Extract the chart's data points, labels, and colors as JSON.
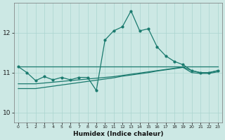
{
  "xlabel": "Humidex (Indice chaleur)",
  "bg_color": "#cce8e4",
  "line_color": "#1a7a6e",
  "grid_color": "#aad4cf",
  "xlim": [
    -0.5,
    23.5
  ],
  "ylim": [
    9.75,
    12.75
  ],
  "yticks": [
    10,
    11,
    12
  ],
  "xticks": [
    0,
    1,
    2,
    3,
    4,
    5,
    6,
    7,
    8,
    9,
    10,
    11,
    12,
    13,
    14,
    15,
    16,
    17,
    18,
    19,
    20,
    21,
    22,
    23
  ],
  "line_flat_x": [
    0,
    1,
    2,
    3,
    4,
    5,
    6,
    7,
    8,
    9,
    10,
    11,
    12,
    13,
    14,
    15,
    16,
    17,
    18,
    19,
    20,
    21,
    22,
    23
  ],
  "line_flat_y": [
    11.15,
    11.15,
    11.15,
    11.15,
    11.15,
    11.15,
    11.15,
    11.15,
    11.15,
    11.15,
    11.15,
    11.15,
    11.15,
    11.15,
    11.15,
    11.15,
    11.15,
    11.15,
    11.15,
    11.15,
    11.15,
    11.15,
    11.15,
    11.15
  ],
  "line_peak_x": [
    0,
    1,
    2,
    3,
    4,
    5,
    6,
    7,
    8,
    9,
    10,
    11,
    12,
    13,
    14,
    15,
    16,
    17,
    18,
    19,
    20,
    21,
    22,
    23
  ],
  "line_peak_y": [
    11.15,
    11.0,
    10.8,
    10.9,
    10.82,
    10.88,
    10.82,
    10.88,
    10.88,
    10.55,
    11.82,
    12.05,
    12.15,
    12.55,
    12.05,
    12.1,
    11.65,
    11.42,
    11.28,
    11.2,
    11.05,
    11.0,
    11.0,
    11.05
  ],
  "line_rise1_x": [
    0,
    1,
    2,
    3,
    4,
    5,
    6,
    7,
    8,
    9,
    10,
    11,
    12,
    13,
    14,
    15,
    16,
    17,
    18,
    19,
    20,
    21,
    22,
    23
  ],
  "line_rise1_y": [
    10.72,
    10.72,
    10.72,
    10.74,
    10.76,
    10.78,
    10.8,
    10.82,
    10.84,
    10.86,
    10.88,
    10.9,
    10.93,
    10.96,
    10.99,
    11.02,
    11.05,
    11.08,
    11.11,
    11.14,
    11.05,
    11.0,
    11.0,
    11.05
  ],
  "line_rise2_x": [
    0,
    1,
    2,
    3,
    4,
    5,
    6,
    7,
    8,
    9,
    10,
    11,
    12,
    13,
    14,
    15,
    16,
    17,
    18,
    19,
    20,
    21,
    22,
    23
  ],
  "line_rise2_y": [
    10.6,
    10.6,
    10.6,
    10.63,
    10.66,
    10.69,
    10.72,
    10.75,
    10.78,
    10.81,
    10.84,
    10.87,
    10.91,
    10.94,
    10.97,
    11.0,
    11.04,
    11.07,
    11.1,
    11.13,
    11.0,
    10.98,
    10.98,
    11.02
  ]
}
